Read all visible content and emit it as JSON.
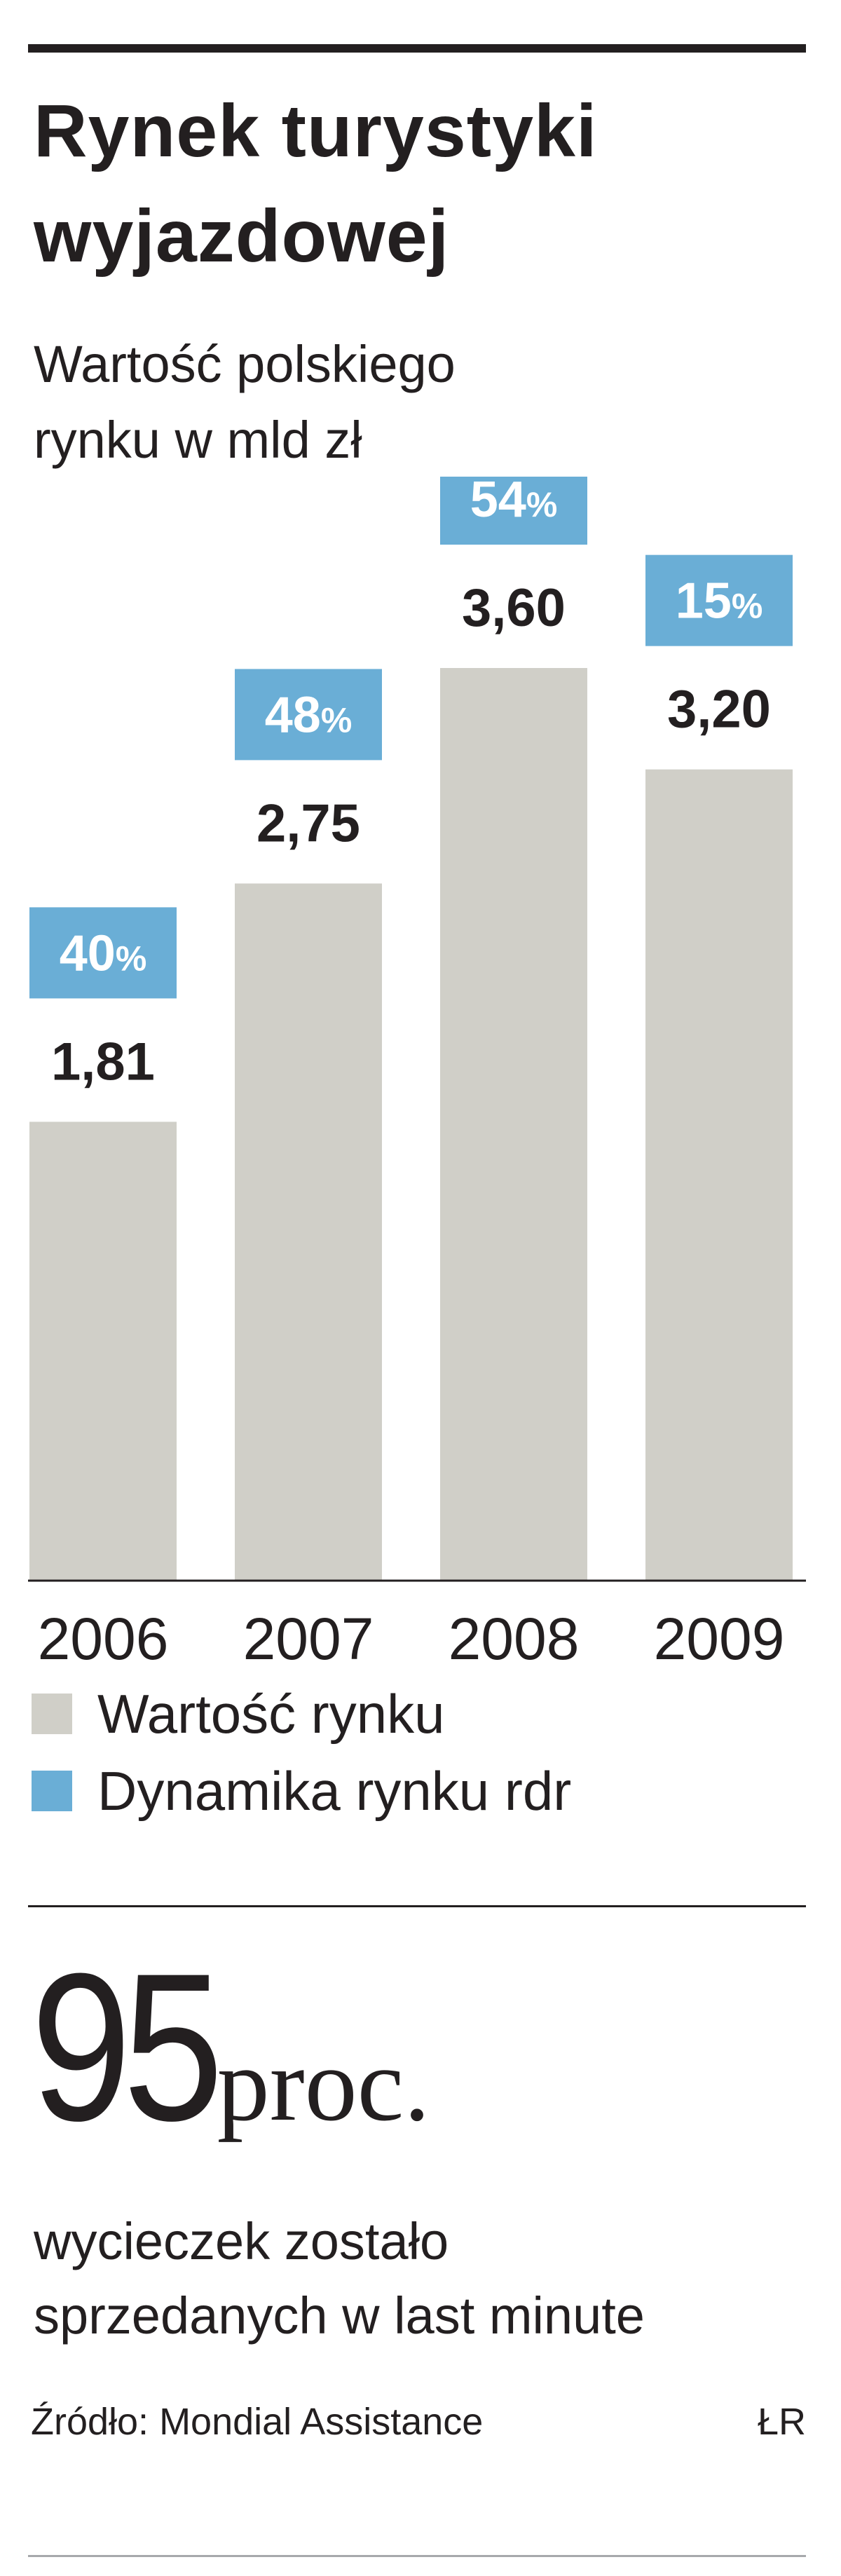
{
  "title_line1": "Rynek turystyki",
  "title_line2": "wyjazdowej",
  "subtitle_line1": "Wartość polskiego",
  "subtitle_line2": "rynku w mld zł",
  "colors": {
    "bar": "#d0cfc8",
    "badge": "#6aaed6",
    "text": "#231f20"
  },
  "chart_data": {
    "type": "bar",
    "categories": [
      "2006",
      "2007",
      "2008",
      "2009"
    ],
    "series": [
      {
        "name": "Wartość rynku",
        "values": [
          1.81,
          2.75,
          3.6,
          3.2
        ],
        "labels": [
          "1,81",
          "2,75",
          "3,60",
          "3,20"
        ]
      },
      {
        "name": "Dynamika rynku rdr",
        "values": [
          40,
          48,
          54,
          15
        ],
        "unit": "%"
      }
    ],
    "title": "Rynek turystyki wyjazdowej",
    "subtitle": "Wartość polskiego rynku w mld zł",
    "xlabel": "",
    "ylabel": "",
    "ylim": [
      0,
      3.6
    ],
    "grid": false,
    "legend": "bottom-left"
  },
  "legend": [
    {
      "label": "Wartość rynku",
      "color": "#d0cfc8"
    },
    {
      "label": "Dynamika rynku rdr",
      "color": "#6aaed6"
    }
  ],
  "stat": {
    "number": "95",
    "unit": "proc.",
    "line1": "wycieczek zostało",
    "line2": "sprzedanych w last minute"
  },
  "source": "Źródło: Mondial Assistance",
  "credit": "ŁR"
}
